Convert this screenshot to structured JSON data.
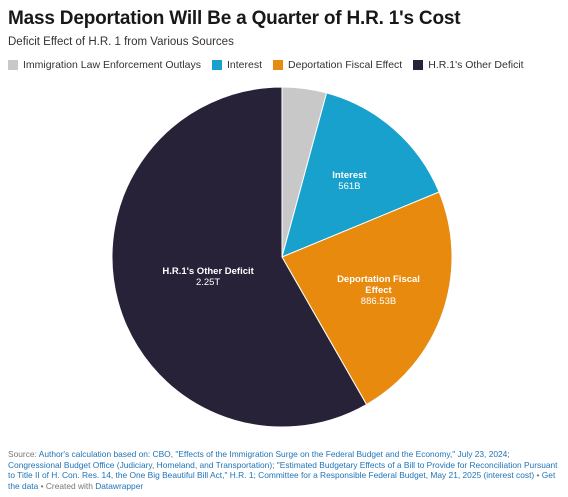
{
  "header": {
    "title": "Mass Deportation Will Be a Quarter of H.R. 1's Cost",
    "subtitle": "Deficit Effect of H.R. 1 from Various Sources"
  },
  "chart_data": {
    "type": "pie",
    "title": "Mass Deportation Will Be a Quarter of H.R. 1's Cost",
    "subtitle": "Deficit Effect of H.R. 1 from Various Sources",
    "legend_position": "top",
    "slices": [
      {
        "name": "Immigration Law Enforcement Outlays",
        "value": 163,
        "unit": "B",
        "color": "#c8c8c8",
        "show_label": false
      },
      {
        "name": "Interest",
        "value": 561,
        "display_value": "561B",
        "color": "#18a1cd",
        "show_label": true
      },
      {
        "name": "Deportation Fiscal Effect",
        "value": 886.53,
        "display_value": "886.53B",
        "label_lines": [
          "Deportation Fiscal",
          "Effect"
        ],
        "color": "#e88a0e",
        "show_label": true
      },
      {
        "name": "H.R.1's Other Deficit",
        "value": 2250,
        "display_value": "2.25T",
        "color": "#282239",
        "show_label": true
      }
    ]
  },
  "footer": {
    "source_prefix": "Source:",
    "source_text": "Author's calculation based on: CBO, \"Effects of the Immigration Surge on the Federal Budget and the Economy,\" July 23, 2024; Congressional Budget Office (Judiciary, Homeland, and Transportation); \"Estimated Budgetary Effects of a Bill to Provide for Reconciliation Pursuant to Title II of H. Con. Res. 14, the One Big Beautiful Bill Act,\" H.R. 1; Committee for a Responsible Federal Budget, May 21, 2025 (interest cost)",
    "separator": "•",
    "get_data_label": "Get the data",
    "created_with": "Created with",
    "datawrapper_label": "Datawrapper"
  }
}
